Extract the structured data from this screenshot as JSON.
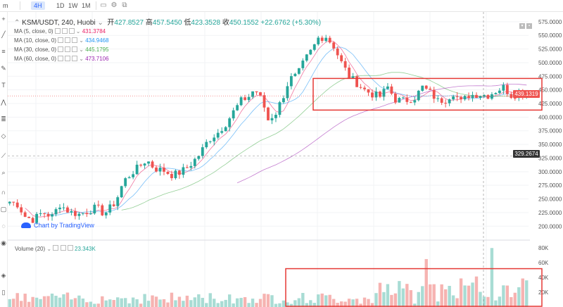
{
  "toolbar": {
    "timeframes": [
      "m",
      "4H",
      "1D",
      "1W",
      "1M"
    ],
    "active_timeframe": "4H"
  },
  "legend": {
    "symbol": "KSM/USDT, 240, Huobi",
    "open_label": "开",
    "open_value": "427.8527",
    "high_label": "高",
    "high_value": "457.5450",
    "low_label": "低",
    "low_value": "423.3528",
    "close_label": "收",
    "close_value": "450.1552",
    "change": "+22.6762 (+5.30%)",
    "ma_lines": [
      {
        "label": "MA (5, close, 0)",
        "value": "431.3784",
        "color": "#e91e63"
      },
      {
        "label": "MA (10, close, 0)",
        "value": "434.9468",
        "color": "#2196f3"
      },
      {
        "label": "MA (30, close, 0)",
        "value": "445.1795",
        "color": "#4caf50"
      },
      {
        "label": "MA (60, close, 0)",
        "value": "473.7106",
        "color": "#9c27b0"
      }
    ]
  },
  "volume_legend": {
    "label": "Volume (20)",
    "value": "23.343K"
  },
  "watermark": "Chart by TradingView",
  "price_axis": [
    "575.0000",
    "550.0000",
    "525.0000",
    "500.0000",
    "475.0000",
    "450.0000",
    "425.0000",
    "400.0000",
    "375.0000",
    "350.0000",
    "325.0000",
    "300.0000",
    "275.0000",
    "250.0000",
    "225.0000",
    "200.0000"
  ],
  "volume_axis": [
    "80K",
    "60K",
    "40K",
    "20K"
  ],
  "badges": {
    "current_price": "439.1319",
    "crosshair_price": "329.2674"
  },
  "colors": {
    "up": "#26a69a",
    "down": "#ef5350",
    "highlight_box": "#e53935"
  },
  "chart_data": {
    "type": "candlestick",
    "title": "KSM/USDT, 240, Huobi",
    "ylim": [
      190,
      580
    ],
    "volume_ylim": [
      0,
      85000
    ],
    "annotations": [
      {
        "type": "rectangle",
        "pane": "price",
        "y_range": [
          413,
          471
        ]
      },
      {
        "type": "rectangle",
        "pane": "volume",
        "y_range": [
          0,
          52000
        ]
      }
    ]
  }
}
